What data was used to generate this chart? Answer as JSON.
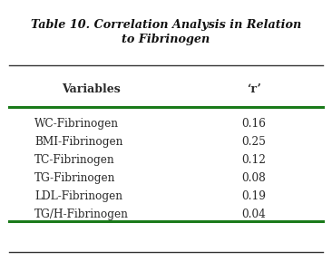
{
  "title_line1": "Table 10. Correlation Analysis in Relation",
  "title_line2": "to Fibrinogen",
  "col_headers": [
    "Variables",
    "‘r’"
  ],
  "rows": [
    [
      "WC-Fibrinogen",
      "0.16"
    ],
    [
      "BMI-Fibrinogen",
      "0.25"
    ],
    [
      "TC-Fibrinogen",
      "0.12"
    ],
    [
      "TG-Fibrinogen",
      "0.08"
    ],
    [
      "LDL-Fibrinogen",
      "0.19"
    ],
    [
      "TG/H-Fibrinogen",
      "0.04"
    ]
  ],
  "bg_color": "#ffffff",
  "text_color": "#2a2a2a",
  "green_line_color": "#1a7a1a",
  "black_line_color": "#333333",
  "title_color": "#111111"
}
